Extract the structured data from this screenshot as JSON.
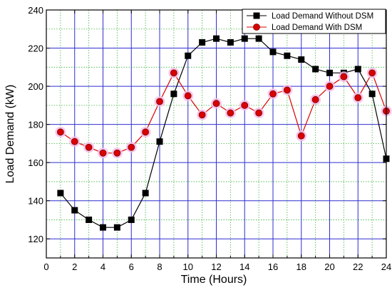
{
  "chart_data": {
    "type": "line",
    "xlabel": "Time (Hours)",
    "ylabel": "Load Demand (kW)",
    "xlim": [
      0,
      24
    ],
    "ylim": [
      110,
      240
    ],
    "x_ticks": [
      0,
      2,
      4,
      6,
      8,
      10,
      12,
      14,
      16,
      18,
      20,
      22,
      24
    ],
    "y_ticks": [
      120,
      140,
      160,
      180,
      200,
      220,
      240
    ],
    "grid": true,
    "legend_position": "top-right",
    "x": [
      1,
      2,
      3,
      4,
      5,
      6,
      7,
      8,
      9,
      10,
      11,
      12,
      13,
      14,
      15,
      16,
      17,
      18,
      19,
      20,
      21,
      22,
      23,
      24
    ],
    "series": [
      {
        "name": "Load Demand Without DSM",
        "color": "#000000",
        "marker": "square",
        "values": [
          144,
          135,
          130,
          126,
          126,
          130,
          144,
          171,
          196,
          216,
          223,
          225,
          223,
          225,
          225,
          218,
          216,
          214,
          209,
          207,
          207,
          209,
          196,
          162
        ]
      },
      {
        "name": "Load Demand With DSM",
        "color": "#d90000",
        "marker": "circle",
        "values": [
          176,
          171,
          168,
          165,
          165,
          168,
          176,
          192,
          207,
          195,
          185,
          191,
          186,
          190,
          186,
          196,
          198,
          174,
          193,
          200,
          205,
          194,
          207,
          187
        ]
      }
    ]
  }
}
